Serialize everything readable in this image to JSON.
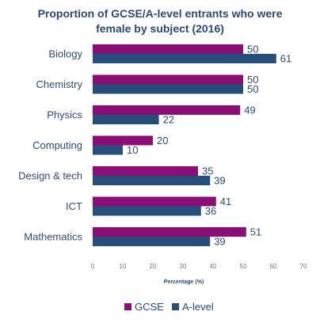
{
  "chart_data": {
    "type": "bar",
    "orientation": "horizontal",
    "title": [
      "Proportion of GCSE/A-level entrants who were",
      "female by subject (2016)"
    ],
    "categories": [
      "Biology",
      "Chemistry",
      "Physics",
      "Computing",
      "Design & tech",
      "ICT",
      "Mathematics"
    ],
    "series": [
      {
        "name": "GCSE",
        "color": "#8b0e76",
        "values": [
          50,
          50,
          49,
          20,
          35,
          41,
          51
        ]
      },
      {
        "name": "A-level",
        "color": "#254f7a",
        "values": [
          61,
          50,
          22,
          10,
          39,
          36,
          39
        ]
      }
    ],
    "xlabel": "Percentage (%)",
    "xlim": [
      0,
      70
    ],
    "xticks": [
      0,
      10,
      20,
      30,
      40,
      50,
      60,
      70
    ],
    "grid": false,
    "legend_position": "bottom"
  }
}
